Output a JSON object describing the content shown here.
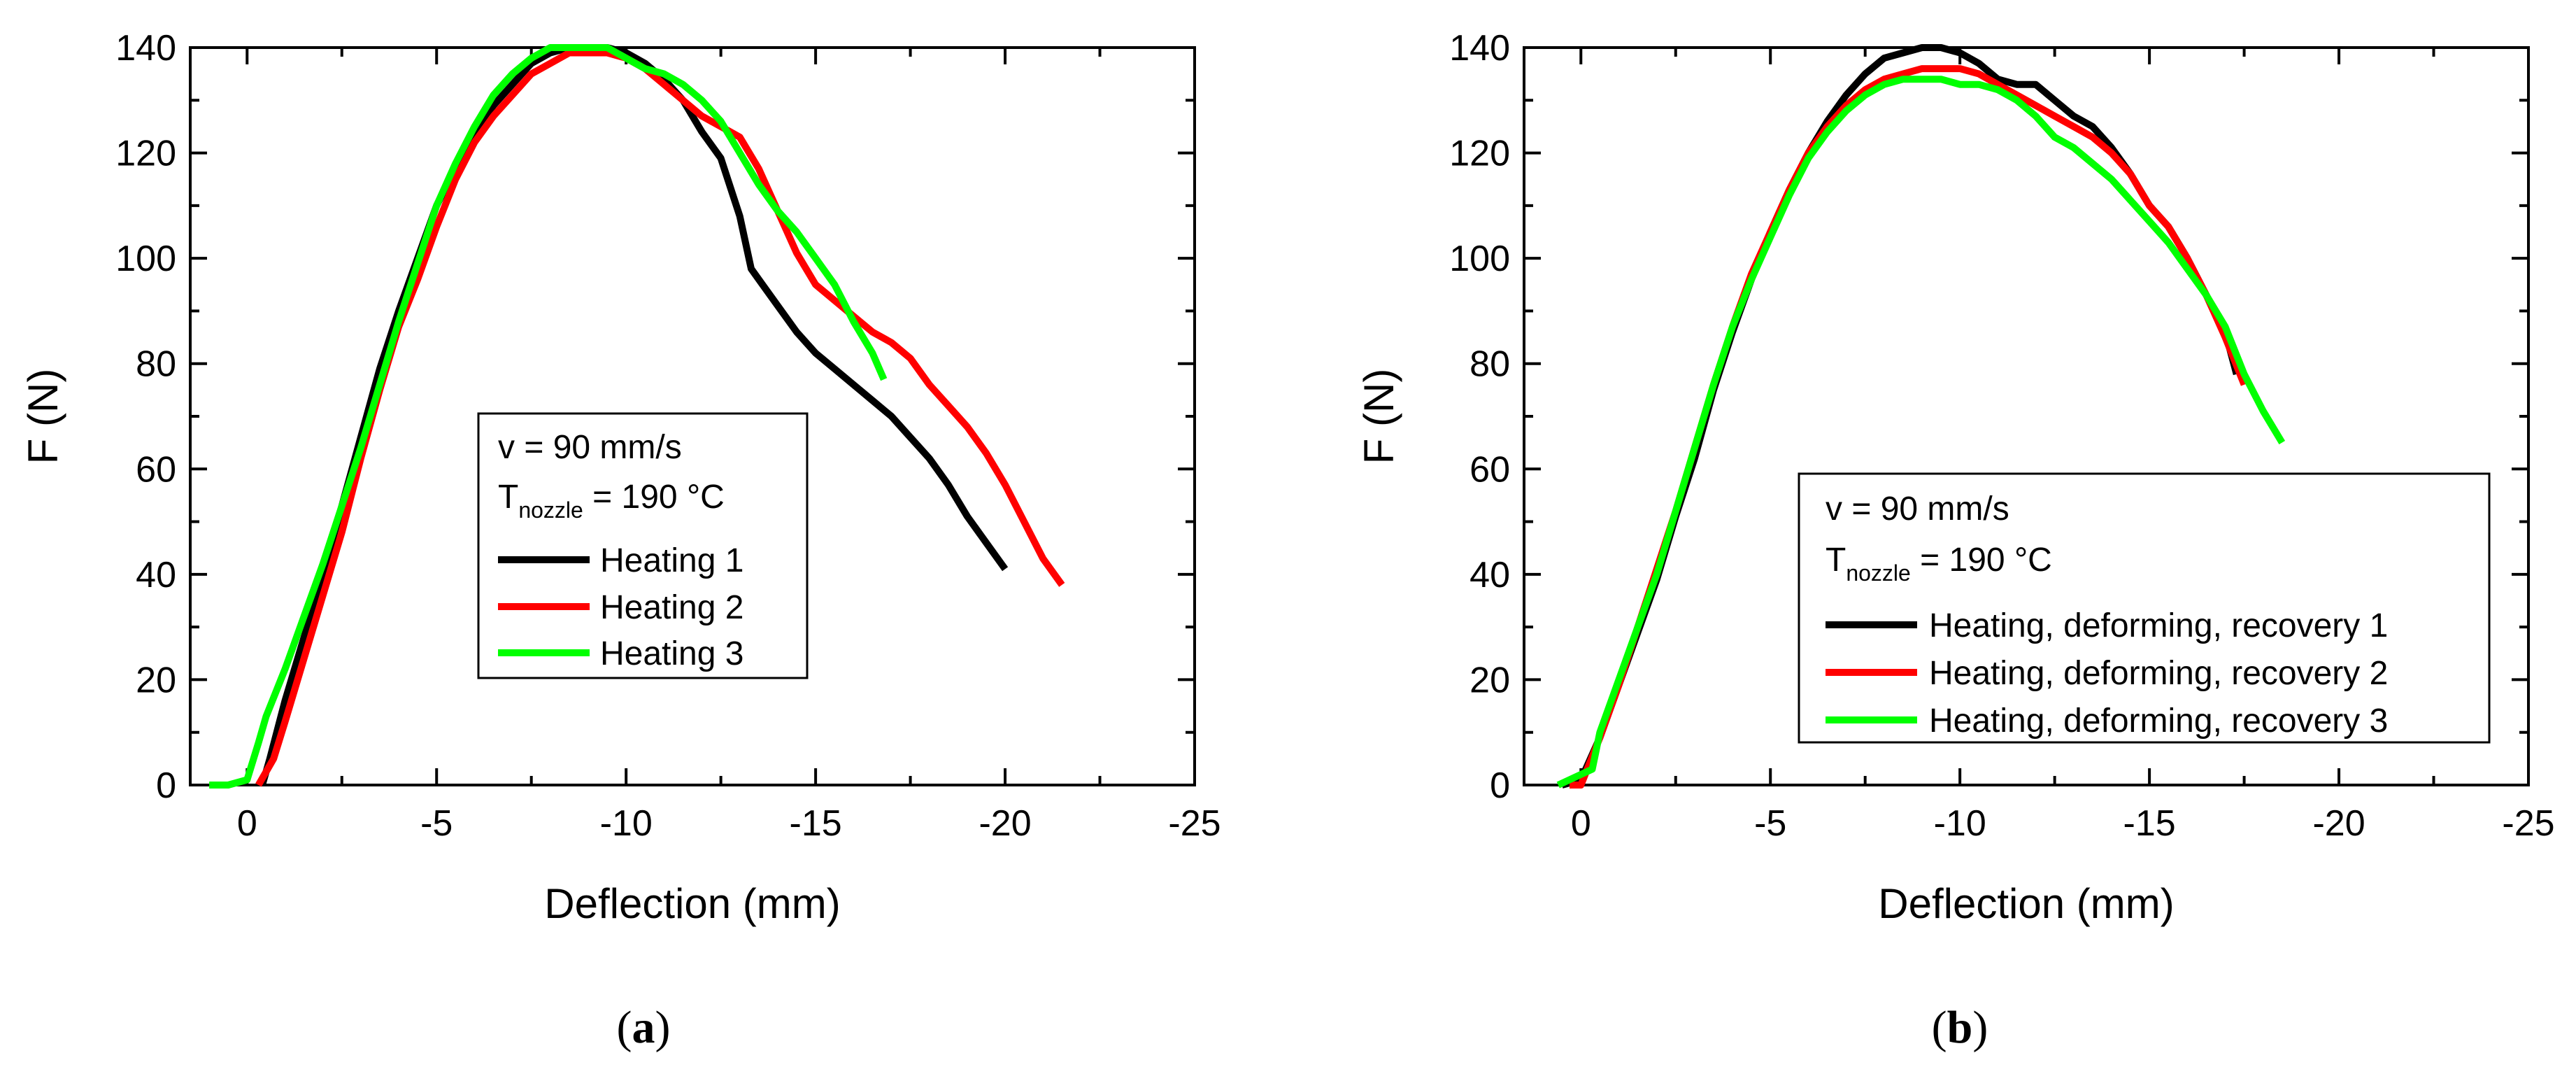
{
  "chart_data": [
    {
      "type": "line",
      "panel": "a",
      "xlabel": "Deflection (mm)",
      "ylabel": "F (N)",
      "xlim": [
        1.5,
        -25
      ],
      "ylim": [
        0,
        140
      ],
      "xticks": [
        0,
        -5,
        -10,
        -15,
        -20,
        -25
      ],
      "xtick_labels": [
        "0",
        "-5",
        "-10",
        "-15",
        "-20",
        "-25"
      ],
      "yticks": [
        0,
        20,
        40,
        60,
        80,
        100,
        120,
        140
      ],
      "ytick_labels": [
        "0",
        "20",
        "40",
        "60",
        "80",
        "100",
        "120",
        "140"
      ],
      "legend": {
        "placement": "center",
        "line1": "v = 90 mm/s",
        "line2_prefix": "T",
        "line2_sub": "nozzle",
        "line2_suffix": " = 190 °C"
      },
      "series": [
        {
          "name": "Heating 1",
          "color": "#000000",
          "x": [
            -0.4,
            -0.6,
            -1.0,
            -1.5,
            -2.0,
            -2.5,
            -3.0,
            -3.5,
            -4.0,
            -4.5,
            -5.0,
            -5.5,
            -6.0,
            -6.5,
            -7.0,
            -7.5,
            -8.0,
            -8.5,
            -9.0,
            -9.5,
            -10.0,
            -10.5,
            -11.0,
            -11.5,
            -12.0,
            -12.5,
            -13.0,
            -13.3,
            -13.6,
            -14.0,
            -14.5,
            -15.0,
            -15.5,
            -16.0,
            -16.5,
            -17.0,
            -17.5,
            -18.0,
            -18.5,
            -19.0,
            -19.5,
            -20.0
          ],
          "y": [
            0,
            5,
            16,
            28,
            40,
            53,
            66,
            79,
            90,
            100,
            110,
            117,
            124,
            129,
            133,
            137,
            139,
            140,
            140,
            140,
            139,
            137,
            134,
            130,
            124,
            119,
            108,
            98,
            95,
            91,
            86,
            82,
            79,
            76,
            73,
            70,
            66,
            62,
            57,
            51,
            46,
            41
          ]
        },
        {
          "name": "Heating 2",
          "color": "#ff0000",
          "x": [
            -0.3,
            -0.7,
            -1.0,
            -1.5,
            -2.0,
            -2.5,
            -3.0,
            -3.5,
            -4.0,
            -4.5,
            -5.0,
            -5.5,
            -6.0,
            -6.5,
            -7.0,
            -7.5,
            -8.0,
            -8.5,
            -9.0,
            -9.5,
            -10.0,
            -10.5,
            -11.0,
            -11.5,
            -12.0,
            -12.5,
            -13.0,
            -13.5,
            -14.0,
            -14.5,
            -15.0,
            -15.5,
            -16.0,
            -16.5,
            -17.0,
            -17.5,
            -18.0,
            -18.5,
            -19.0,
            -19.5,
            -20.0,
            -20.5,
            -21.0,
            -21.5
          ],
          "y": [
            0,
            5,
            12,
            24,
            36,
            48,
            62,
            75,
            87,
            96,
            106,
            115,
            122,
            127,
            131,
            135,
            137,
            139,
            139,
            139,
            138,
            136,
            133,
            130,
            127,
            125,
            123,
            117,
            109,
            101,
            95,
            92,
            89,
            86,
            84,
            81,
            76,
            72,
            68,
            63,
            57,
            50,
            43,
            38
          ]
        },
        {
          "name": "Heating 3",
          "color": "#00ff00",
          "x": [
            1.0,
            0.5,
            0.0,
            -0.3,
            -0.5,
            -1.0,
            -1.5,
            -2.0,
            -2.5,
            -3.0,
            -3.5,
            -4.0,
            -4.5,
            -5.0,
            -5.5,
            -6.0,
            -6.5,
            -7.0,
            -7.5,
            -8.0,
            -8.5,
            -9.0,
            -9.5,
            -10.0,
            -10.5,
            -11.0,
            -11.5,
            -12.0,
            -12.5,
            -13.0,
            -13.5,
            -14.0,
            -14.5,
            -15.0,
            -15.5,
            -16.0,
            -16.5,
            -16.8
          ],
          "y": [
            0,
            0,
            1,
            8,
            13,
            22,
            32,
            42,
            53,
            64,
            76,
            88,
            99,
            110,
            118,
            125,
            131,
            135,
            138,
            140,
            140,
            140,
            140,
            138,
            136,
            135,
            133,
            130,
            126,
            120,
            114,
            109,
            105,
            100,
            95,
            88,
            82,
            77
          ]
        }
      ]
    },
    {
      "type": "line",
      "panel": "b",
      "xlabel": "Deflection (mm)",
      "ylabel": "F (N)",
      "xlim": [
        1.5,
        -25
      ],
      "ylim": [
        0,
        140
      ],
      "xticks": [
        0,
        -5,
        -10,
        -15,
        -20,
        -25
      ],
      "xtick_labels": [
        "0",
        "-5",
        "-10",
        "-15",
        "-20",
        "-25"
      ],
      "yticks": [
        0,
        20,
        40,
        60,
        80,
        100,
        120,
        140
      ],
      "ytick_labels": [
        "0",
        "20",
        "40",
        "60",
        "80",
        "100",
        "120",
        "140"
      ],
      "legend": {
        "placement": "bottom-right",
        "line1": "v = 90 mm/s",
        "line2_prefix": "T",
        "line2_sub": "nozzle",
        "line2_suffix": " = 190 °C"
      },
      "series": [
        {
          "name": "Heating, deforming, recovery 1",
          "color": "#000000",
          "x": [
            0.5,
            0.0,
            -0.5,
            -1.0,
            -1.5,
            -2.0,
            -2.5,
            -3.0,
            -3.5,
            -4.0,
            -4.5,
            -5.0,
            -5.5,
            -6.0,
            -6.5,
            -7.0,
            -7.5,
            -8.0,
            -8.5,
            -9.0,
            -9.5,
            -10.0,
            -10.5,
            -11.0,
            -11.5,
            -12.0,
            -12.5,
            -13.0,
            -13.5,
            -14.0,
            -14.5,
            -15.0,
            -15.5,
            -16.0,
            -16.5,
            -17.0,
            -17.3
          ],
          "y": [
            0,
            1,
            9,
            19,
            29,
            39,
            51,
            62,
            75,
            86,
            96,
            105,
            113,
            120,
            126,
            131,
            135,
            138,
            139,
            140,
            140,
            139,
            137,
            134,
            133,
            133,
            130,
            127,
            125,
            121,
            116,
            110,
            106,
            100,
            93,
            86,
            78
          ]
        },
        {
          "name": "Heating, deforming, recovery 2",
          "color": "#ff0000",
          "x": [
            0.3,
            0.0,
            -0.5,
            -1.0,
            -1.5,
            -2.0,
            -2.5,
            -3.0,
            -3.5,
            -4.0,
            -4.5,
            -5.0,
            -5.5,
            -6.0,
            -6.5,
            -7.0,
            -7.5,
            -8.0,
            -8.5,
            -9.0,
            -9.5,
            -10.0,
            -10.5,
            -11.0,
            -11.5,
            -12.0,
            -12.5,
            -13.0,
            -13.5,
            -14.0,
            -14.5,
            -15.0,
            -15.5,
            -16.0,
            -16.5,
            -17.0,
            -17.5
          ],
          "y": [
            0,
            0,
            9,
            19,
            30,
            41,
            52,
            64,
            76,
            87,
            97,
            105,
            113,
            120,
            125,
            129,
            132,
            134,
            135,
            136,
            136,
            136,
            135,
            133,
            131,
            129,
            127,
            125,
            123,
            120,
            116,
            110,
            106,
            100,
            93,
            85,
            76
          ]
        },
        {
          "name": "Heating, deforming, recovery 3",
          "color": "#00ff00",
          "x": [
            0.6,
            0.0,
            -0.3,
            -0.5,
            -1.0,
            -1.5,
            -2.0,
            -2.5,
            -3.0,
            -3.5,
            -4.0,
            -4.5,
            -5.0,
            -5.5,
            -6.0,
            -6.5,
            -7.0,
            -7.5,
            -8.0,
            -8.5,
            -9.0,
            -9.5,
            -10.0,
            -10.5,
            -11.0,
            -11.5,
            -12.0,
            -12.5,
            -13.0,
            -13.5,
            -14.0,
            -14.5,
            -15.0,
            -15.5,
            -16.0,
            -16.5,
            -17.0,
            -17.5,
            -18.0,
            -18.5
          ],
          "y": [
            0,
            2,
            3,
            10,
            20,
            30,
            40,
            52,
            64,
            76,
            87,
            96,
            104,
            112,
            119,
            124,
            128,
            131,
            133,
            134,
            134,
            134,
            133,
            133,
            132,
            130,
            127,
            123,
            121,
            118,
            115,
            111,
            107,
            103,
            98,
            93,
            87,
            78,
            71,
            65
          ]
        }
      ]
    }
  ],
  "panels": [
    {
      "label_open": "(",
      "label_letter": "a",
      "label_close": ")"
    },
    {
      "label_open": "(",
      "label_letter": "b",
      "label_close": ")"
    }
  ]
}
